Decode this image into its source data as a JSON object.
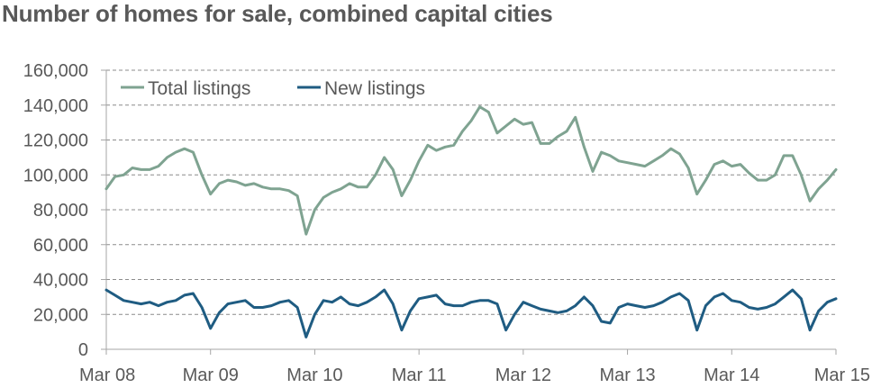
{
  "title": "Number of homes for sale, combined capital cities",
  "colors": {
    "total": "#7fa391",
    "new": "#1f5c82",
    "grid": "#8c8c8c",
    "axis": "#a6a6a6",
    "text": "#595959"
  },
  "chart_data": {
    "type": "line",
    "title": "Number of homes for sale, combined capital cities",
    "xlabel": "",
    "ylabel": "",
    "ylim": [
      0,
      160000
    ],
    "xlim": [
      "2008-03",
      "2015-03"
    ],
    "y_ticks": [
      "0",
      "20,000",
      "40,000",
      "60,000",
      "80,000",
      "100,000",
      "120,000",
      "140,000",
      "160,000"
    ],
    "x_ticks": [
      "Mar 08",
      "Mar 09",
      "Mar 10",
      "Mar 11",
      "Mar 12",
      "Mar 13",
      "Mar 14",
      "Mar 15"
    ],
    "grid": "horizontal dashed",
    "legend_position": "top-left",
    "series": [
      {
        "name": "Total listings",
        "color": "#7fa391",
        "points": [
          [
            "2008-03",
            92000
          ],
          [
            "2008-04",
            99000
          ],
          [
            "2008-05",
            100000
          ],
          [
            "2008-06",
            104000
          ],
          [
            "2008-07",
            103000
          ],
          [
            "2008-08",
            103000
          ],
          [
            "2008-09",
            105000
          ],
          [
            "2008-10",
            110000
          ],
          [
            "2008-11",
            113000
          ],
          [
            "2008-12",
            115000
          ],
          [
            "2009-01",
            113000
          ],
          [
            "2009-02",
            100000
          ],
          [
            "2009-03",
            89000
          ],
          [
            "2009-04",
            95000
          ],
          [
            "2009-05",
            97000
          ],
          [
            "2009-06",
            96000
          ],
          [
            "2009-07",
            94000
          ],
          [
            "2009-08",
            95000
          ],
          [
            "2009-09",
            93000
          ],
          [
            "2009-10",
            92000
          ],
          [
            "2009-11",
            92000
          ],
          [
            "2009-12",
            91000
          ],
          [
            "2010-01",
            88000
          ],
          [
            "2010-02",
            66000
          ],
          [
            "2010-03",
            80000
          ],
          [
            "2010-04",
            87000
          ],
          [
            "2010-05",
            90000
          ],
          [
            "2010-06",
            92000
          ],
          [
            "2010-07",
            95000
          ],
          [
            "2010-08",
            93000
          ],
          [
            "2010-09",
            93000
          ],
          [
            "2010-10",
            100000
          ],
          [
            "2010-11",
            110000
          ],
          [
            "2010-12",
            103000
          ],
          [
            "2011-01",
            88000
          ],
          [
            "2011-02",
            97000
          ],
          [
            "2011-03",
            108000
          ],
          [
            "2011-04",
            117000
          ],
          [
            "2011-05",
            114000
          ],
          [
            "2011-06",
            116000
          ],
          [
            "2011-07",
            117000
          ],
          [
            "2011-08",
            125000
          ],
          [
            "2011-09",
            131000
          ],
          [
            "2011-10",
            139000
          ],
          [
            "2011-11",
            136000
          ],
          [
            "2011-12",
            124000
          ],
          [
            "2012-01",
            128000
          ],
          [
            "2012-02",
            132000
          ],
          [
            "2012-03",
            129000
          ],
          [
            "2012-04",
            130000
          ],
          [
            "2012-05",
            118000
          ],
          [
            "2012-06",
            118000
          ],
          [
            "2012-07",
            122000
          ],
          [
            "2012-08",
            125000
          ],
          [
            "2012-09",
            133000
          ],
          [
            "2012-10",
            116000
          ],
          [
            "2012-11",
            102000
          ],
          [
            "2012-12",
            113000
          ],
          [
            "2013-01",
            111000
          ],
          [
            "2013-02",
            108000
          ],
          [
            "2013-03",
            107000
          ],
          [
            "2013-04",
            106000
          ],
          [
            "2013-05",
            105000
          ],
          [
            "2013-06",
            108000
          ],
          [
            "2013-07",
            111000
          ],
          [
            "2013-08",
            115000
          ],
          [
            "2013-09",
            112000
          ],
          [
            "2013-10",
            104000
          ],
          [
            "2013-11",
            89000
          ],
          [
            "2013-12",
            97000
          ],
          [
            "2014-01",
            106000
          ],
          [
            "2014-02",
            108000
          ],
          [
            "2014-03",
            105000
          ],
          [
            "2014-04",
            106000
          ],
          [
            "2014-05",
            101000
          ],
          [
            "2014-06",
            97000
          ],
          [
            "2014-07",
            97000
          ],
          [
            "2014-08",
            100000
          ],
          [
            "2014-09",
            111000
          ],
          [
            "2014-10",
            111000
          ],
          [
            "2014-11",
            100000
          ],
          [
            "2014-12",
            85000
          ],
          [
            "2015-01",
            92000
          ],
          [
            "2015-02",
            97000
          ],
          [
            "2015-03",
            103000
          ]
        ]
      },
      {
        "name": "New listings",
        "color": "#1f5c82",
        "points": [
          [
            "2008-03",
            34000
          ],
          [
            "2008-04",
            31000
          ],
          [
            "2008-05",
            28000
          ],
          [
            "2008-06",
            27000
          ],
          [
            "2008-07",
            26000
          ],
          [
            "2008-08",
            27000
          ],
          [
            "2008-09",
            25000
          ],
          [
            "2008-10",
            27000
          ],
          [
            "2008-11",
            28000
          ],
          [
            "2008-12",
            31000
          ],
          [
            "2009-01",
            32000
          ],
          [
            "2009-02",
            24000
          ],
          [
            "2009-03",
            12000
          ],
          [
            "2009-04",
            21000
          ],
          [
            "2009-05",
            26000
          ],
          [
            "2009-06",
            27000
          ],
          [
            "2009-07",
            28000
          ],
          [
            "2009-08",
            24000
          ],
          [
            "2009-09",
            24000
          ],
          [
            "2009-10",
            25000
          ],
          [
            "2009-11",
            27000
          ],
          [
            "2009-12",
            28000
          ],
          [
            "2010-01",
            24000
          ],
          [
            "2010-02",
            7000
          ],
          [
            "2010-03",
            20000
          ],
          [
            "2010-04",
            28000
          ],
          [
            "2010-05",
            27000
          ],
          [
            "2010-06",
            30000
          ],
          [
            "2010-07",
            26000
          ],
          [
            "2010-08",
            25000
          ],
          [
            "2010-09",
            27000
          ],
          [
            "2010-10",
            30000
          ],
          [
            "2010-11",
            34000
          ],
          [
            "2010-12",
            26000
          ],
          [
            "2011-01",
            11000
          ],
          [
            "2011-02",
            22000
          ],
          [
            "2011-03",
            29000
          ],
          [
            "2011-04",
            30000
          ],
          [
            "2011-05",
            31000
          ],
          [
            "2011-06",
            26000
          ],
          [
            "2011-07",
            25000
          ],
          [
            "2011-08",
            25000
          ],
          [
            "2011-09",
            27000
          ],
          [
            "2011-10",
            28000
          ],
          [
            "2011-11",
            28000
          ],
          [
            "2011-12",
            26000
          ],
          [
            "2012-01",
            11000
          ],
          [
            "2012-02",
            20000
          ],
          [
            "2012-03",
            27000
          ],
          [
            "2012-04",
            25000
          ],
          [
            "2012-05",
            23000
          ],
          [
            "2012-06",
            22000
          ],
          [
            "2012-07",
            21000
          ],
          [
            "2012-08",
            22000
          ],
          [
            "2012-09",
            25000
          ],
          [
            "2012-10",
            30000
          ],
          [
            "2012-11",
            25000
          ],
          [
            "2012-12",
            16000
          ],
          [
            "2013-01",
            15000
          ],
          [
            "2013-02",
            24000
          ],
          [
            "2013-03",
            26000
          ],
          [
            "2013-04",
            25000
          ],
          [
            "2013-05",
            24000
          ],
          [
            "2013-06",
            25000
          ],
          [
            "2013-07",
            27000
          ],
          [
            "2013-08",
            30000
          ],
          [
            "2013-09",
            32000
          ],
          [
            "2013-10",
            28000
          ],
          [
            "2013-11",
            11000
          ],
          [
            "2013-12",
            25000
          ],
          [
            "2014-01",
            30000
          ],
          [
            "2014-02",
            32000
          ],
          [
            "2014-03",
            28000
          ],
          [
            "2014-04",
            27000
          ],
          [
            "2014-05",
            24000
          ],
          [
            "2014-06",
            23000
          ],
          [
            "2014-07",
            24000
          ],
          [
            "2014-08",
            26000
          ],
          [
            "2014-09",
            30000
          ],
          [
            "2014-10",
            34000
          ],
          [
            "2014-11",
            29000
          ],
          [
            "2014-12",
            11000
          ],
          [
            "2015-01",
            22000
          ],
          [
            "2015-02",
            27000
          ],
          [
            "2015-03",
            29000
          ]
        ]
      }
    ]
  }
}
